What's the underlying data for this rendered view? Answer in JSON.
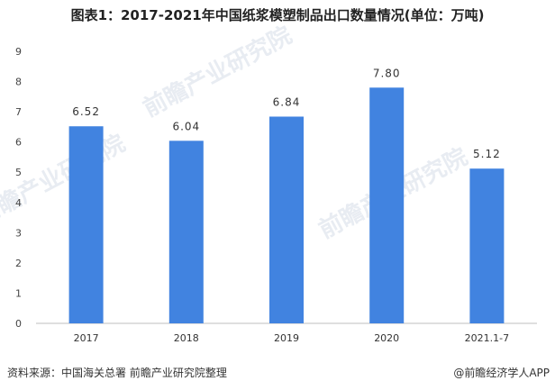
{
  "chart_data": {
    "type": "bar",
    "title": "图表1：2017-2021年中国纸浆模塑制品出口数量情况(单位：万吨)",
    "categories": [
      "2017",
      "2018",
      "2019",
      "2020",
      "2021.1-7"
    ],
    "values": [
      6.52,
      6.04,
      6.84,
      7.8,
      5.12
    ],
    "value_labels": [
      "6.52",
      "6.04",
      "6.84",
      "7.80",
      "5.12"
    ],
    "ylim": [
      0,
      9
    ],
    "yticks": [
      "0",
      "1",
      "2",
      "3",
      "4",
      "5",
      "6",
      "7",
      "8",
      "9"
    ],
    "xlabel": "",
    "ylabel": "",
    "grid": false,
    "bar_color": "#4183e0"
  },
  "footer": {
    "source": "资料来源：中国海关总署 前瞻产业研究院整理",
    "credit": "@前瞻经济学人APP"
  },
  "watermark": {
    "text": "前瞻产业研究院"
  }
}
